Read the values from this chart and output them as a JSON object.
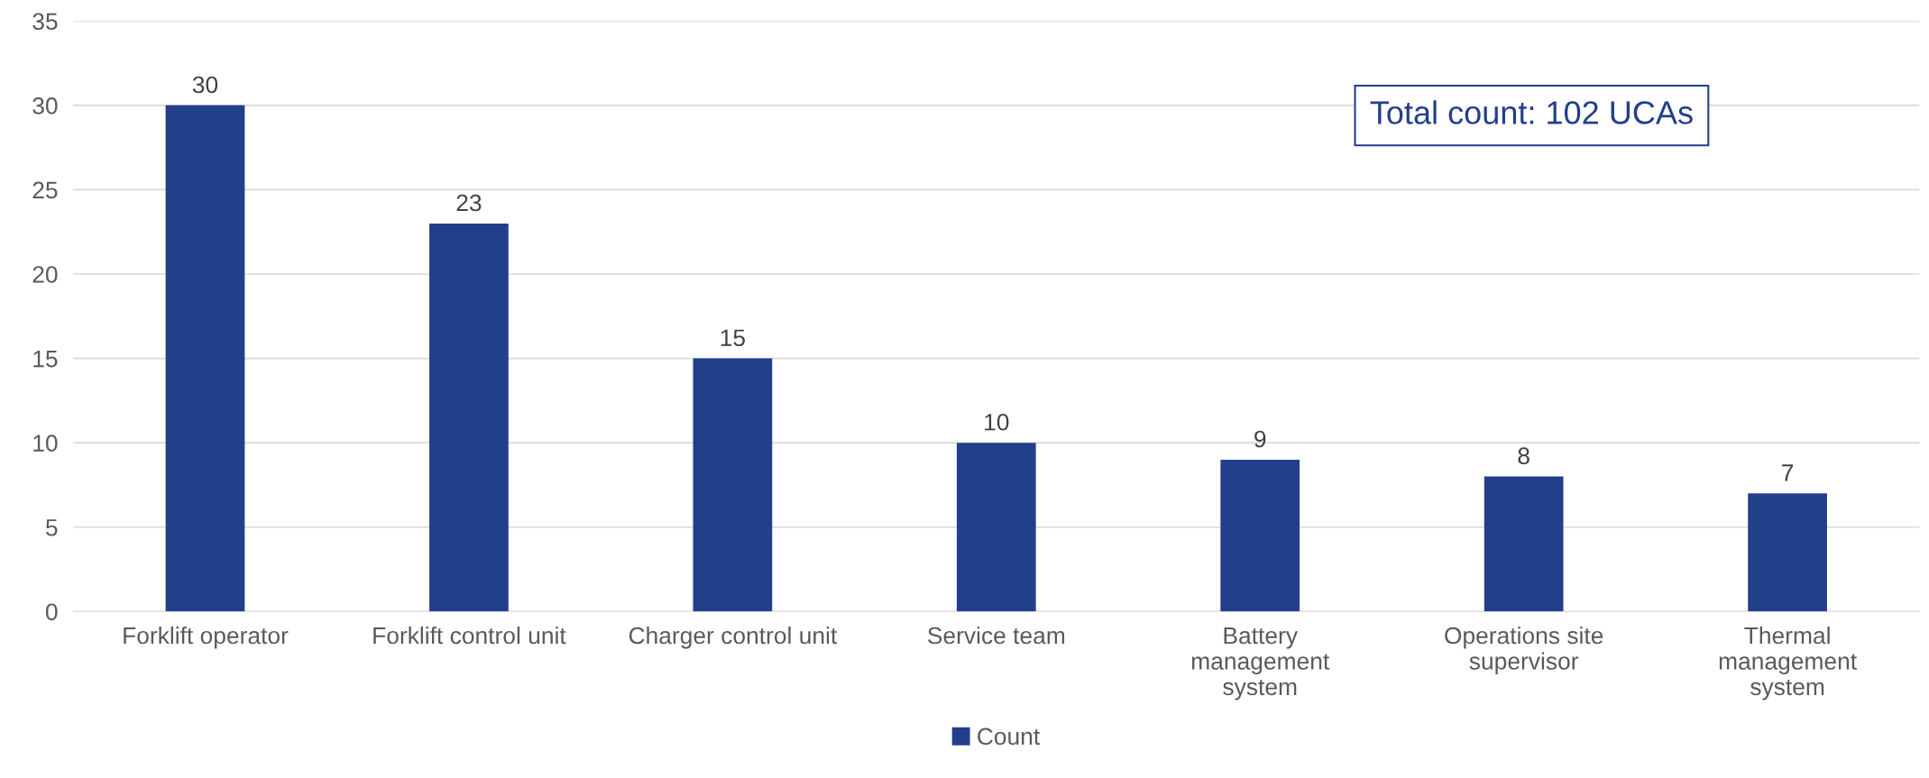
{
  "chart_data": {
    "type": "bar",
    "categories": [
      "Forklift operator",
      "Forklift control unit",
      "Charger control unit",
      "Service team",
      "Battery\nmanagement\nsystem",
      "Operations site\nsupervisor",
      "Thermal\nmanagement\nsystem"
    ],
    "series": [
      {
        "name": "Count",
        "color": "#223f8a",
        "values": [
          30,
          23,
          15,
          10,
          9,
          8,
          7
        ]
      }
    ],
    "ylim": [
      0,
      35
    ],
    "yticks": [
      0,
      5,
      10,
      15,
      20,
      25,
      30,
      35
    ],
    "grid": "y",
    "legend": "bottom",
    "data_labels": true,
    "annotations": [
      "Total count: 102 UCAs"
    ]
  }
}
